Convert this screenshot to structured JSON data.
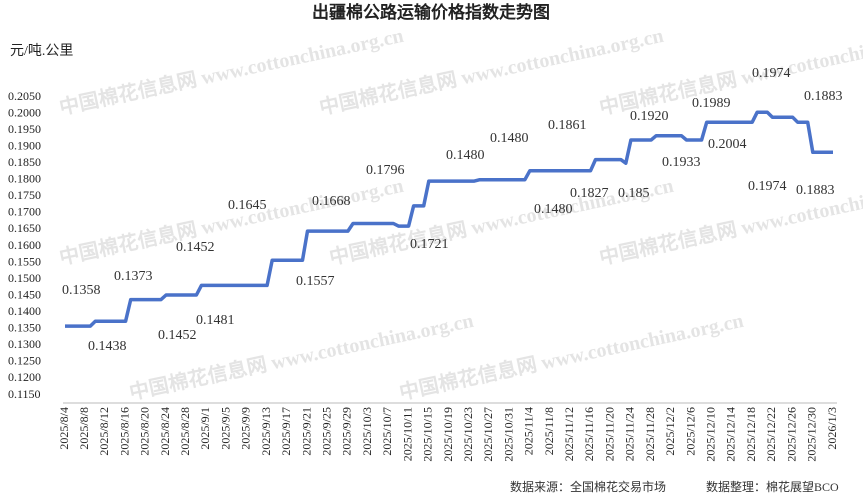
{
  "chart_data": {
    "type": "line",
    "title": "出疆棉公路运输价格指数走势图",
    "y_label": "元/吨.公里",
    "watermark": "中国棉花信息网 www.cottonchina.org.cn",
    "source": "数据来源：全国棉花交易市场",
    "compiled_by": "数据整理：棉花展望BCO",
    "color": "#4a72c9",
    "categories": [
      "2025/8/4",
      null,
      null,
      null,
      "2025/8/8",
      null,
      null,
      null,
      "2025/8/12",
      null,
      null,
      null,
      "2025/8/16",
      null,
      null,
      null,
      "2025/8/20",
      null,
      null,
      null,
      "2025/8/24",
      null,
      null,
      null,
      "2025/8/28",
      null,
      null,
      null,
      "2025/9/1",
      null,
      null,
      null,
      "2025/9/5",
      null,
      null,
      null,
      "2025/9/9",
      null,
      null,
      null,
      "2025/9/13",
      null,
      null,
      null,
      "2025/9/17",
      null,
      null,
      null,
      "2025/9/21",
      null,
      null,
      null,
      "2025/9/25",
      null,
      null,
      null,
      "2025/9/29",
      null,
      null,
      null,
      "2025/10/3",
      null,
      null,
      null,
      "2025/10/7",
      null,
      null,
      null,
      "2025/10/11",
      null,
      null,
      null,
      "2025/10/15",
      null,
      null,
      null,
      "2025/10/19",
      null,
      null,
      null,
      "2025/10/23",
      null,
      null,
      null,
      "2025/10/27",
      null,
      null,
      null,
      "2025/10/31",
      null,
      null,
      null,
      "2025/11/4",
      null,
      null,
      null,
      "2025/11/8",
      null,
      null,
      null,
      "2025/11/12",
      null,
      null,
      null,
      "2025/11/16",
      null,
      null,
      null,
      "2025/11/20",
      null,
      null,
      null,
      "2025/11/24",
      null,
      null,
      null,
      "2025/11/28",
      null,
      null,
      null,
      "2025/12/2",
      null,
      null,
      null,
      "2025/12/6",
      null,
      null,
      null,
      "2025/12/10",
      null,
      null,
      null,
      "2025/12/14",
      null,
      null,
      null,
      "2025/12/18",
      null,
      null,
      null,
      "2025/12/22",
      null,
      null,
      null,
      "2025/12/26",
      null,
      null,
      null,
      "2025/12/30",
      null,
      null,
      null,
      "2026/1/3"
    ],
    "values": [
      0.1358,
      0.1358,
      0.1358,
      0.1358,
      0.1358,
      0.1358,
      0.1373,
      0.1373,
      0.1373,
      0.1373,
      0.1373,
      0.1373,
      0.1373,
      0.1438,
      0.1438,
      0.1438,
      0.1438,
      0.1438,
      0.1438,
      0.1438,
      0.1452,
      0.1452,
      0.1452,
      0.1452,
      0.1452,
      0.1452,
      0.1452,
      0.1481,
      0.1481,
      0.1481,
      0.1481,
      0.1481,
      0.1481,
      0.1481,
      0.1481,
      0.1481,
      0.1481,
      0.1481,
      0.1481,
      0.1481,
      0.1481,
      0.1557,
      0.1557,
      0.1557,
      0.1557,
      0.1557,
      0.1557,
      0.1557,
      0.1645,
      0.1645,
      0.1645,
      0.1645,
      0.1645,
      0.1645,
      0.1645,
      0.1645,
      0.1645,
      0.1668,
      0.1668,
      0.1668,
      0.1668,
      0.1668,
      0.1668,
      0.1668,
      0.1668,
      0.1668,
      0.166,
      0.166,
      0.166,
      0.1721,
      0.1721,
      0.1721,
      0.1796,
      0.1796,
      0.1796,
      0.1796,
      0.1796,
      0.1796,
      0.1796,
      0.1796,
      0.1796,
      0.1796,
      0.18,
      0.18,
      0.18,
      0.18,
      0.18,
      0.18,
      0.18,
      0.18,
      0.18,
      0.18,
      0.1827,
      0.1827,
      0.1827,
      0.1827,
      0.1827,
      0.1827,
      0.1827,
      0.1827,
      0.1827,
      0.1827,
      0.1827,
      0.1827,
      0.1827,
      0.1861,
      0.1861,
      0.1861,
      0.1861,
      0.1861,
      0.1861,
      0.185,
      0.192,
      0.192,
      0.192,
      0.192,
      0.192,
      0.1933,
      0.1933,
      0.1933,
      0.1933,
      0.1933,
      0.1933,
      0.192,
      0.192,
      0.192,
      0.192,
      0.1974,
      0.1974,
      0.1974,
      0.1974,
      0.1974,
      0.1974,
      0.1974,
      0.1974,
      0.1974,
      0.1974,
      0.2004,
      0.2004,
      0.2004,
      0.1989,
      0.1989,
      0.1989,
      0.1989,
      0.1989,
      0.1974,
      0.1974,
      0.1974,
      0.1883,
      0.1883,
      0.1883,
      0.1883,
      0.1883
    ],
    "annotations": [
      "0.1358",
      "0.1373",
      "0.1438",
      "0.1452",
      "0.1452",
      "0.1481",
      "0.1645",
      "0.1557",
      "0.1668",
      "0.1721",
      "0.1796",
      "0.1480",
      "0.1480",
      "0.1480",
      "0.1861",
      "0.1827",
      "0.185",
      "0.1920",
      "0.1933",
      "0.1989",
      "0.2004",
      "0.1974",
      "0.1974",
      "0.1883",
      "0.1883"
    ],
    "ylim": [
      0.115,
      0.205
    ],
    "yticks": [
      {
        "value": 0.115,
        "label": "0.1150"
      },
      {
        "value": 0.12,
        "label": "0.1200"
      },
      {
        "value": 0.125,
        "label": "0.1250"
      },
      {
        "value": 0.13,
        "label": "0.1300"
      },
      {
        "value": 0.135,
        "label": "0.1350"
      },
      {
        "value": 0.14,
        "label": "0.1400"
      },
      {
        "value": 0.145,
        "label": "0.1450"
      },
      {
        "value": 0.15,
        "label": "0.1500"
      },
      {
        "value": 0.155,
        "label": "0.1550"
      },
      {
        "value": 0.16,
        "label": "0.1600"
      },
      {
        "value": 0.165,
        "label": "0.1650"
      },
      {
        "value": 0.17,
        "label": "0.1700"
      },
      {
        "value": 0.175,
        "label": "0.1750"
      },
      {
        "value": 0.18,
        "label": "0.1800"
      },
      {
        "value": 0.185,
        "label": "0.1850"
      },
      {
        "value": 0.19,
        "label": "0.1900"
      },
      {
        "value": 0.195,
        "label": "0.1950"
      },
      {
        "value": 0.2,
        "label": "0.2000"
      },
      {
        "value": 0.205,
        "label": "0.2050"
      }
    ],
    "grid": false
  }
}
